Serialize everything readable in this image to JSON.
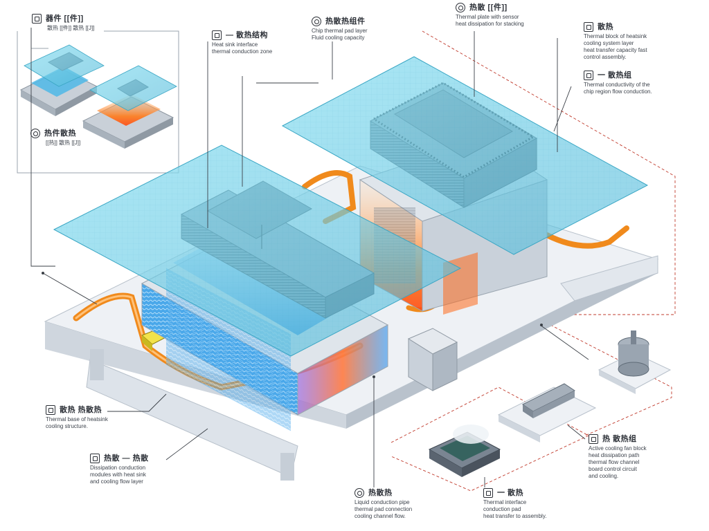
{
  "colors": {
    "glass": "#6fcfe6",
    "glass_edge": "#3aa6c4",
    "heatsink": "#8a9aa8",
    "heatsink_dark": "#5f6d7a",
    "base": "#e6eaef",
    "base_shadow": "#c3cad3",
    "pipe": "#f08a1c",
    "hot": "#ff6a1a",
    "cold": "#3aa0e6",
    "leader": "#3a3f46",
    "dashed": "#c0392b"
  },
  "callouts": {
    "top_left_inset": {
      "icon": "document-icon",
      "title": "器件 [[件]]",
      "lines": [
        "散热 [[件]] 散热 [[J]]"
      ]
    },
    "inset_bottom": {
      "icon": "fan-icon",
      "title": "热件散热",
      "lines": [
        "[[热]] 散热 [[J]]"
      ]
    },
    "top_center_left": {
      "icon": "chip-icon",
      "title": "— 散热结构",
      "lines": [
        "Heat sink interface",
        "thermal conduction zone"
      ]
    },
    "top_center": {
      "icon": "gauge-icon",
      "title": "热散热组件",
      "lines": [
        "Chip thermal pad layer",
        "Fluid cooling capacity"
      ]
    },
    "top_right_center": {
      "icon": "thermo-icon",
      "title": "热散 [[件]]",
      "lines": [
        "Thermal plate with sensor",
        "heat dissipation for stacking"
      ]
    },
    "right_top": {
      "icon": "lock-icon",
      "title": "散热",
      "lines": [
        "Thermal block of heatsink",
        "cooling system layer",
        "heat transfer capacity fast",
        "control assembly."
      ]
    },
    "right_second": {
      "icon": "check-icon",
      "title": "一 散热组",
      "lines": [
        "Thermal conductivity of the",
        "chip region flow conduction."
      ]
    },
    "left_lower_1": {
      "icon": "mail-icon",
      "title": "散热 热散热",
      "lines": [
        "Thermal base of heatsink",
        "cooling structure."
      ]
    },
    "left_lower_2": {
      "icon": "box-icon",
      "title": "热散 — 热散",
      "lines": [
        "Dissipation conduction",
        "modules with heat sink",
        "and cooling flow layer"
      ]
    },
    "bottom_center": {
      "icon": "wave-icon",
      "title": "热散热",
      "lines": [
        "Liquid conduction pipe",
        "thermal pad connection",
        "cooling channel flow."
      ]
    },
    "bottom_right_center": {
      "icon": "card-icon",
      "title": "一 散热",
      "lines": [
        "Thermal interface",
        "conduction pad",
        "heat transfer to assembly."
      ]
    },
    "right_bottom": {
      "icon": "monitor-icon",
      "title": "热 散热组",
      "lines": [
        "Active cooling fan block",
        "heat dissipation path",
        "thermal flow channel",
        "board control circuit",
        "and cooling."
      ]
    }
  }
}
